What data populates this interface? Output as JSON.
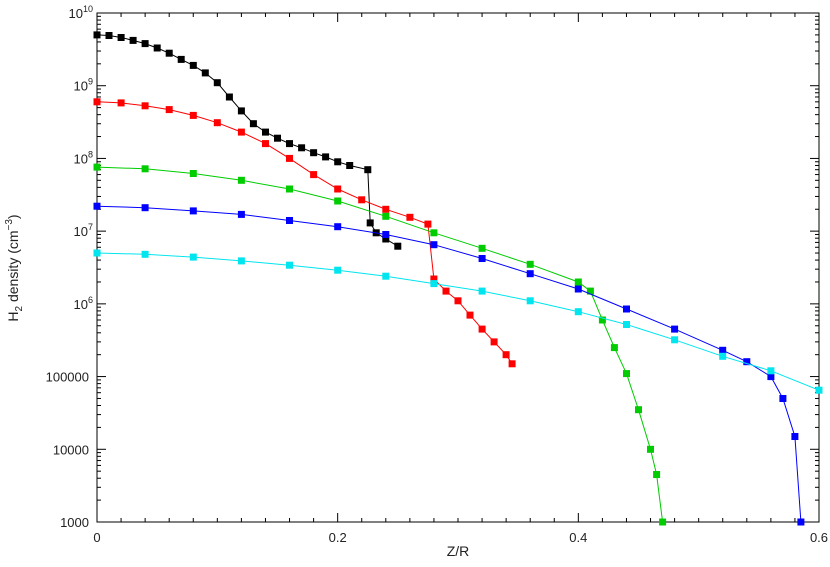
{
  "chart_data": {
    "type": "line",
    "xlabel": "Z/R",
    "ylabel": {
      "prefix": "H",
      "sub": "2",
      "mid": " density (cm",
      "sup": "−3",
      "suffix": ")"
    },
    "xlim": [
      0,
      0.6
    ],
    "ylim": [
      1000,
      10000000000
    ],
    "yscale": "log",
    "grid": false,
    "x_ticks": [
      {
        "value": 0,
        "label": "0"
      },
      {
        "value": 0.2,
        "label": "0.2"
      },
      {
        "value": 0.4,
        "label": "0.4"
      },
      {
        "value": 0.6,
        "label": "0.6"
      }
    ],
    "y_ticks": [
      {
        "value": 1000,
        "label": "1000"
      },
      {
        "value": 10000,
        "label": "10000"
      },
      {
        "value": 100000,
        "label": "100000"
      },
      {
        "value": 1000000,
        "label": "10",
        "exp": "6"
      },
      {
        "value": 10000000,
        "label": "10",
        "exp": "7"
      },
      {
        "value": 100000000,
        "label": "10",
        "exp": "8"
      },
      {
        "value": 1000000000,
        "label": "10",
        "exp": "9"
      },
      {
        "value": 10000000000,
        "label": "10",
        "exp": "10"
      }
    ],
    "series": [
      {
        "color": "#000000",
        "points": [
          [
            0,
            5000000000.0
          ],
          [
            0.01,
            4900000000.0
          ],
          [
            0.02,
            4600000000.0
          ],
          [
            0.03,
            4200000000.0
          ],
          [
            0.04,
            3800000000.0
          ],
          [
            0.05,
            3300000000.0
          ],
          [
            0.06,
            2800000000.0
          ],
          [
            0.07,
            2300000000.0
          ],
          [
            0.08,
            1900000000.0
          ],
          [
            0.09,
            1500000000.0
          ],
          [
            0.1,
            1100000000.0
          ],
          [
            0.11,
            700000000.0
          ],
          [
            0.12,
            450000000.0
          ],
          [
            0.13,
            300000000.0
          ],
          [
            0.14,
            230000000.0
          ],
          [
            0.15,
            190000000.0
          ],
          [
            0.16,
            160000000.0
          ],
          [
            0.17,
            140000000.0
          ],
          [
            0.18,
            120000000.0
          ],
          [
            0.19,
            105000000.0
          ],
          [
            0.2,
            90000000.0
          ],
          [
            0.21,
            80000000.0
          ],
          [
            0.225,
            70000000.0
          ],
          [
            0.227,
            13000000.0
          ],
          [
            0.232,
            9500000.0
          ],
          [
            0.24,
            7800000.0
          ],
          [
            0.25,
            6200000.0
          ]
        ]
      },
      {
        "color": "#ff0000",
        "points": [
          [
            0,
            600000000.0
          ],
          [
            0.02,
            580000000.0
          ],
          [
            0.04,
            530000000.0
          ],
          [
            0.06,
            470000000.0
          ],
          [
            0.08,
            390000000.0
          ],
          [
            0.1,
            310000000.0
          ],
          [
            0.12,
            230000000.0
          ],
          [
            0.14,
            160000000.0
          ],
          [
            0.16,
            100000000.0
          ],
          [
            0.18,
            60000000.0
          ],
          [
            0.2,
            38000000.0
          ],
          [
            0.22,
            27000000.0
          ],
          [
            0.24,
            20000000.0
          ],
          [
            0.26,
            15500000.0
          ],
          [
            0.275,
            12500000.0
          ],
          [
            0.28,
            2200000.0
          ],
          [
            0.29,
            1500000.0
          ],
          [
            0.3,
            1100000.0
          ],
          [
            0.31,
            700000.0
          ],
          [
            0.32,
            450000.0
          ],
          [
            0.33,
            300000.0
          ],
          [
            0.34,
            200000.0
          ],
          [
            0.345,
            150000.0
          ]
        ]
      },
      {
        "color": "#00cc00",
        "points": [
          [
            0,
            76000000.0
          ],
          [
            0.04,
            72000000.0
          ],
          [
            0.08,
            62000000.0
          ],
          [
            0.12,
            50000000.0
          ],
          [
            0.16,
            38000000.0
          ],
          [
            0.2,
            26000000.0
          ],
          [
            0.24,
            16000000.0
          ],
          [
            0.28,
            9500000.0
          ],
          [
            0.32,
            5800000.0
          ],
          [
            0.36,
            3500000.0
          ],
          [
            0.4,
            2000000.0
          ],
          [
            0.41,
            1500000.0
          ],
          [
            0.42,
            600000.0
          ],
          [
            0.43,
            250000.0
          ],
          [
            0.44,
            110000.0
          ],
          [
            0.45,
            35000.0
          ],
          [
            0.46,
            10000.0
          ],
          [
            0.465,
            4500.0
          ],
          [
            0.47,
            1000.0
          ]
        ]
      },
      {
        "color": "#0000ff",
        "points": [
          [
            0,
            22000000.0
          ],
          [
            0.04,
            21000000.0
          ],
          [
            0.08,
            19000000.0
          ],
          [
            0.12,
            17000000.0
          ],
          [
            0.16,
            14000000.0
          ],
          [
            0.2,
            11500000.0
          ],
          [
            0.24,
            9000000.0
          ],
          [
            0.28,
            6500000.0
          ],
          [
            0.32,
            4200000.0
          ],
          [
            0.36,
            2600000.0
          ],
          [
            0.4,
            1600000.0
          ],
          [
            0.44,
            850000.0
          ],
          [
            0.48,
            450000.0
          ],
          [
            0.52,
            230000.0
          ],
          [
            0.54,
            160000.0
          ],
          [
            0.56,
            100000.0
          ],
          [
            0.57,
            50000.0
          ],
          [
            0.58,
            15000.0
          ],
          [
            0.585,
            1000.0
          ]
        ]
      },
      {
        "color": "#00e5ee",
        "points": [
          [
            0,
            5000000.0
          ],
          [
            0.04,
            4800000.0
          ],
          [
            0.08,
            4400000.0
          ],
          [
            0.12,
            3900000.0
          ],
          [
            0.16,
            3400000.0
          ],
          [
            0.2,
            2900000.0
          ],
          [
            0.24,
            2400000.0
          ],
          [
            0.28,
            1900000.0
          ],
          [
            0.32,
            1500000.0
          ],
          [
            0.36,
            1100000.0
          ],
          [
            0.4,
            780000.0
          ],
          [
            0.44,
            520000.0
          ],
          [
            0.48,
            320000.0
          ],
          [
            0.52,
            190000.0
          ],
          [
            0.56,
            120000.0
          ],
          [
            0.6,
            65000.0
          ]
        ]
      }
    ]
  }
}
